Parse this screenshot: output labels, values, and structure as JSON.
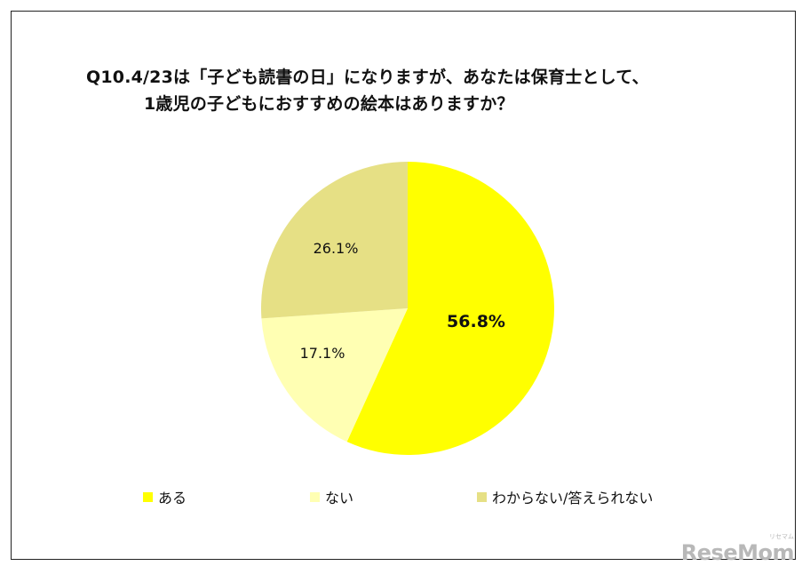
{
  "title": {
    "line1": "Q10.4/23は「子ども読書の日」になりますが、あなたは保育士として、",
    "line2": "1歳児の子どもにおすすめの絵本はありますか？"
  },
  "chart_data": {
    "type": "pie",
    "start_angle_deg": 0,
    "direction": "clockwise",
    "slices": [
      {
        "label": "ある",
        "value": 56.8,
        "display": "56.8%",
        "color": "#ffff00",
        "label_bold": true
      },
      {
        "label": "ない",
        "value": 17.1,
        "display": "17.1%",
        "color": "#ffffb3",
        "label_bold": false
      },
      {
        "label": "わからない/答えられない",
        "value": 26.1,
        "display": "26.1%",
        "color": "#e6e085",
        "label_bold": false
      }
    ],
    "legend_position": "bottom"
  },
  "watermark": {
    "text": "ReseMom",
    "sub": "リセマム"
  }
}
